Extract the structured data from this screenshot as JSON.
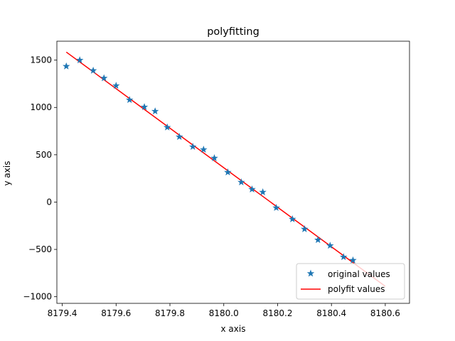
{
  "chart_data": {
    "type": "scatter",
    "title": "polyfitting",
    "xlabel": "x axis",
    "ylabel": "y axis",
    "xlim": [
      8179.38,
      8180.69
    ],
    "ylim": [
      -1070,
      1700
    ],
    "xticks": [
      8179.4,
      8179.6,
      8179.8,
      8180.0,
      8180.2,
      8180.4,
      8180.6
    ],
    "xtick_labels": [
      "8179.4",
      "8179.6",
      "8179.8",
      "8180.0",
      "8180.2",
      "8180.4",
      "8180.6"
    ],
    "yticks": [
      -1000,
      -500,
      0,
      500,
      1000,
      1500
    ],
    "ytick_labels": [
      "−1000",
      "−500",
      "0",
      "500",
      "1000",
      "1500"
    ],
    "grid": false,
    "legend_position": "lower-right",
    "series": [
      {
        "name": "original values",
        "kind": "scatter",
        "marker": "star",
        "color": "#1f77b4",
        "x": [
          8179.415,
          8179.465,
          8179.515,
          8179.555,
          8179.6,
          8179.65,
          8179.705,
          8179.745,
          8179.79,
          8179.835,
          8179.885,
          8179.925,
          8179.965,
          8180.015,
          8180.065,
          8180.105,
          8180.145,
          8180.195,
          8180.255,
          8180.3,
          8180.35,
          8180.395,
          8180.445,
          8180.48
        ],
        "y": [
          1435,
          1500,
          1390,
          1310,
          1230,
          1080,
          1005,
          960,
          790,
          690,
          585,
          555,
          465,
          315,
          210,
          135,
          105,
          -60,
          -180,
          -285,
          -400,
          -460,
          -580,
          -615
        ]
      },
      {
        "name": "polyfit values",
        "kind": "line",
        "color": "#ff0000",
        "x": [
          8179.415,
          8180.6
        ],
        "y": [
          1585,
          -890
        ]
      }
    ]
  }
}
